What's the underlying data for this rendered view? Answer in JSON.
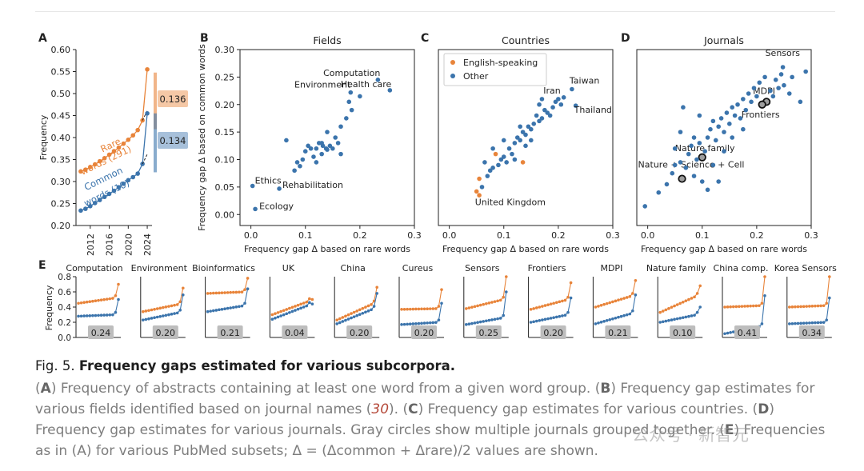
{
  "colors": {
    "rare": "#e8843a",
    "common": "#3b74ac",
    "label_box": "#bdbdbd"
  },
  "chart_data": [
    {
      "panel": "A",
      "type": "line",
      "title": "",
      "ylabel": "Frequency",
      "ylim": [
        0.2,
        0.6
      ],
      "yticks": [
        "0.20",
        "0.25",
        "0.30",
        "0.35",
        "0.40",
        "0.45",
        "0.50",
        "0.55",
        "0.60"
      ],
      "xticks": [
        "2012",
        "2016",
        "2020",
        "2024"
      ],
      "series": [
        {
          "name": "Rare words (291)",
          "label_lines": [
            "Rare",
            "words (291)"
          ],
          "x": [
            2010,
            2011,
            2012,
            2013,
            2014,
            2015,
            2016,
            2017,
            2018,
            2019,
            2020,
            2021,
            2022,
            2023,
            2024
          ],
          "values": [
            0.323,
            0.327,
            0.333,
            0.339,
            0.346,
            0.353,
            0.361,
            0.369,
            0.377,
            0.386,
            0.395,
            0.405,
            0.417,
            0.439,
            0.555
          ]
        },
        {
          "name": "Common words (10)",
          "label_lines": [
            "Common",
            "words (10)"
          ],
          "x": [
            2010,
            2011,
            2012,
            2013,
            2014,
            2015,
            2016,
            2017,
            2018,
            2019,
            2020,
            2021,
            2022,
            2023,
            2024
          ],
          "values": [
            0.234,
            0.238,
            0.244,
            0.251,
            0.258,
            0.265,
            0.272,
            0.279,
            0.287,
            0.295,
            0.303,
            0.31,
            0.318,
            0.34,
            0.455
          ]
        }
      ],
      "gap_labels": [
        "0.136",
        "0.134"
      ]
    },
    {
      "panel": "B",
      "type": "scatter",
      "title": "Fields",
      "xlabel": "Frequency gap Δ based on rare words",
      "ylabel": "Frequency gap Δ based on common words",
      "xlim": [
        -0.02,
        0.3
      ],
      "ylim": [
        -0.02,
        0.3
      ],
      "xticks": [
        "0.0",
        "0.1",
        "0.2",
        "0.3"
      ],
      "yticks": [
        "0.00",
        "0.05",
        "0.10",
        "0.15",
        "0.20",
        "0.25",
        "0.30"
      ],
      "points": [
        {
          "x": 0.003,
          "y": 0.052,
          "label": "Ethics"
        },
        {
          "x": 0.052,
          "y": 0.047,
          "label": "Rehabilitation"
        },
        {
          "x": 0.008,
          "y": 0.01,
          "label": "Ecology"
        },
        {
          "x": 0.183,
          "y": 0.222,
          "label": "Environment"
        },
        {
          "x": 0.233,
          "y": 0.245,
          "label": "Computation"
        },
        {
          "x": 0.255,
          "y": 0.226,
          "label": "Health care"
        },
        {
          "x": 0.08,
          "y": 0.08
        },
        {
          "x": 0.095,
          "y": 0.1
        },
        {
          "x": 0.1,
          "y": 0.115
        },
        {
          "x": 0.11,
          "y": 0.12
        },
        {
          "x": 0.115,
          "y": 0.105
        },
        {
          "x": 0.12,
          "y": 0.12
        },
        {
          "x": 0.125,
          "y": 0.13
        },
        {
          "x": 0.13,
          "y": 0.11
        },
        {
          "x": 0.132,
          "y": 0.125
        },
        {
          "x": 0.138,
          "y": 0.12
        },
        {
          "x": 0.14,
          "y": 0.118
        },
        {
          "x": 0.145,
          "y": 0.125
        },
        {
          "x": 0.15,
          "y": 0.12
        },
        {
          "x": 0.155,
          "y": 0.14
        },
        {
          "x": 0.16,
          "y": 0.13
        },
        {
          "x": 0.165,
          "y": 0.16
        },
        {
          "x": 0.175,
          "y": 0.175
        },
        {
          "x": 0.185,
          "y": 0.19
        },
        {
          "x": 0.2,
          "y": 0.215
        },
        {
          "x": 0.065,
          "y": 0.135
        },
        {
          "x": 0.09,
          "y": 0.088
        },
        {
          "x": 0.14,
          "y": 0.15
        },
        {
          "x": 0.12,
          "y": 0.095
        },
        {
          "x": 0.105,
          "y": 0.125
        },
        {
          "x": 0.18,
          "y": 0.205
        },
        {
          "x": 0.085,
          "y": 0.095
        },
        {
          "x": 0.165,
          "y": 0.11
        },
        {
          "x": 0.13,
          "y": 0.13
        }
      ]
    },
    {
      "panel": "C",
      "type": "scatter",
      "title": "Countries",
      "xlabel": "Frequency gap Δ based on rare words",
      "xlim": [
        -0.02,
        0.3
      ],
      "ylim": [
        -0.02,
        0.3
      ],
      "xticks": [
        "0.0",
        "0.1",
        "0.2",
        "0.3"
      ],
      "legend": [
        {
          "name": "English-speaking",
          "color": "#e8843a"
        },
        {
          "name": "Other",
          "color": "#3b74ac"
        }
      ],
      "points": [
        {
          "x": 0.05,
          "y": 0.042,
          "label": "United Kingdom",
          "group": "English-speaking"
        },
        {
          "x": 0.055,
          "y": 0.065,
          "group": "English-speaking"
        },
        {
          "x": 0.085,
          "y": 0.11,
          "group": "English-speaking"
        },
        {
          "x": 0.135,
          "y": 0.095,
          "group": "English-speaking"
        },
        {
          "x": 0.055,
          "y": 0.035,
          "group": "English-speaking"
        },
        {
          "x": 0.225,
          "y": 0.228,
          "label": "Taiwan",
          "group": "Other"
        },
        {
          "x": 0.21,
          "y": 0.213,
          "label": "Iran",
          "group": "Other"
        },
        {
          "x": 0.232,
          "y": 0.198,
          "label": "Thailand",
          "group": "Other"
        },
        {
          "x": 0.07,
          "y": 0.07
        },
        {
          "x": 0.075,
          "y": 0.08
        },
        {
          "x": 0.08,
          "y": 0.085
        },
        {
          "x": 0.09,
          "y": 0.09
        },
        {
          "x": 0.095,
          "y": 0.1
        },
        {
          "x": 0.1,
          "y": 0.105
        },
        {
          "x": 0.105,
          "y": 0.095
        },
        {
          "x": 0.11,
          "y": 0.12
        },
        {
          "x": 0.115,
          "y": 0.11
        },
        {
          "x": 0.12,
          "y": 0.13
        },
        {
          "x": 0.125,
          "y": 0.14
        },
        {
          "x": 0.13,
          "y": 0.135
        },
        {
          "x": 0.135,
          "y": 0.15
        },
        {
          "x": 0.14,
          "y": 0.145
        },
        {
          "x": 0.145,
          "y": 0.16
        },
        {
          "x": 0.15,
          "y": 0.155
        },
        {
          "x": 0.155,
          "y": 0.165
        },
        {
          "x": 0.16,
          "y": 0.18
        },
        {
          "x": 0.165,
          "y": 0.17
        },
        {
          "x": 0.17,
          "y": 0.175
        },
        {
          "x": 0.175,
          "y": 0.19
        },
        {
          "x": 0.18,
          "y": 0.185
        },
        {
          "x": 0.185,
          "y": 0.18
        },
        {
          "x": 0.19,
          "y": 0.195
        },
        {
          "x": 0.195,
          "y": 0.205
        },
        {
          "x": 0.2,
          "y": 0.21
        },
        {
          "x": 0.205,
          "y": 0.2
        },
        {
          "x": 0.13,
          "y": 0.16
        },
        {
          "x": 0.14,
          "y": 0.125
        },
        {
          "x": 0.15,
          "y": 0.135
        },
        {
          "x": 0.165,
          "y": 0.2
        },
        {
          "x": 0.08,
          "y": 0.12
        },
        {
          "x": 0.12,
          "y": 0.1
        },
        {
          "x": 0.1,
          "y": 0.135
        },
        {
          "x": 0.065,
          "y": 0.095
        },
        {
          "x": 0.06,
          "y": 0.05
        },
        {
          "x": 0.17,
          "y": 0.21
        }
      ]
    },
    {
      "panel": "D",
      "type": "scatter",
      "title": "Journals",
      "xlabel": "Frequency gap Δ based on rare words",
      "xlim": [
        -0.02,
        0.3
      ],
      "ylim": [
        -0.02,
        0.3
      ],
      "xticks": [
        "0.0",
        "0.1",
        "0.2",
        "0.3"
      ],
      "points": [
        {
          "x": 0.248,
          "y": 0.268,
          "label": "Sensors"
        },
        {
          "x": 0.218,
          "y": 0.205,
          "label": "MDPI",
          "grouped": true
        },
        {
          "x": 0.21,
          "y": 0.2,
          "label": "Frontiers",
          "grouped": true
        },
        {
          "x": 0.1,
          "y": 0.104,
          "label": "Nature family",
          "grouped": true
        },
        {
          "x": 0.063,
          "y": 0.065,
          "label": "Nature + Science + Cell",
          "grouped": true
        },
        {
          "x": -0.005,
          "y": 0.015
        },
        {
          "x": 0.02,
          "y": 0.04
        },
        {
          "x": 0.035,
          "y": 0.055
        },
        {
          "x": 0.045,
          "y": 0.075
        },
        {
          "x": 0.05,
          "y": 0.09
        },
        {
          "x": 0.06,
          "y": 0.095
        },
        {
          "x": 0.07,
          "y": 0.085
        },
        {
          "x": 0.075,
          "y": 0.11
        },
        {
          "x": 0.08,
          "y": 0.125
        },
        {
          "x": 0.085,
          "y": 0.14
        },
        {
          "x": 0.09,
          "y": 0.1
        },
        {
          "x": 0.095,
          "y": 0.13
        },
        {
          "x": 0.105,
          "y": 0.115
        },
        {
          "x": 0.11,
          "y": 0.14
        },
        {
          "x": 0.115,
          "y": 0.155
        },
        {
          "x": 0.12,
          "y": 0.17
        },
        {
          "x": 0.125,
          "y": 0.135
        },
        {
          "x": 0.13,
          "y": 0.16
        },
        {
          "x": 0.135,
          "y": 0.175
        },
        {
          "x": 0.14,
          "y": 0.15
        },
        {
          "x": 0.145,
          "y": 0.185
        },
        {
          "x": 0.15,
          "y": 0.165
        },
        {
          "x": 0.155,
          "y": 0.195
        },
        {
          "x": 0.16,
          "y": 0.18
        },
        {
          "x": 0.165,
          "y": 0.2
        },
        {
          "x": 0.17,
          "y": 0.175
        },
        {
          "x": 0.175,
          "y": 0.21
        },
        {
          "x": 0.18,
          "y": 0.19
        },
        {
          "x": 0.185,
          "y": 0.22
        },
        {
          "x": 0.19,
          "y": 0.205
        },
        {
          "x": 0.195,
          "y": 0.23
        },
        {
          "x": 0.2,
          "y": 0.215
        },
        {
          "x": 0.205,
          "y": 0.24
        },
        {
          "x": 0.225,
          "y": 0.225
        },
        {
          "x": 0.23,
          "y": 0.215
        },
        {
          "x": 0.235,
          "y": 0.245
        },
        {
          "x": 0.24,
          "y": 0.23
        },
        {
          "x": 0.245,
          "y": 0.255
        },
        {
          "x": 0.25,
          "y": 0.235
        },
        {
          "x": 0.26,
          "y": 0.22
        },
        {
          "x": 0.29,
          "y": 0.26
        },
        {
          "x": 0.28,
          "y": 0.205
        },
        {
          "x": 0.265,
          "y": 0.25
        },
        {
          "x": 0.05,
          "y": 0.12
        },
        {
          "x": 0.06,
          "y": 0.15
        },
        {
          "x": 0.085,
          "y": 0.07
        },
        {
          "x": 0.11,
          "y": 0.045
        },
        {
          "x": 0.12,
          "y": 0.09
        },
        {
          "x": 0.13,
          "y": 0.06
        },
        {
          "x": 0.14,
          "y": 0.115
        },
        {
          "x": 0.095,
          "y": 0.18
        },
        {
          "x": 0.065,
          "y": 0.195
        },
        {
          "x": 0.215,
          "y": 0.25
        },
        {
          "x": 0.155,
          "y": 0.14
        },
        {
          "x": 0.175,
          "y": 0.155
        },
        {
          "x": 0.1,
          "y": 0.06
        }
      ]
    },
    {
      "panel": "E",
      "type": "line",
      "ylabel": "Frequency",
      "ylim": [
        0,
        0.8
      ],
      "yticks": [
        "0.0",
        "0.2",
        "0.4",
        "0.6",
        "0.8"
      ],
      "subplots": [
        {
          "title": "Computation",
          "delta": "0.24",
          "rare_start": 0.45,
          "rare_end": 0.52,
          "rare_peak": 0.7,
          "common_start": 0.28,
          "common_end": 0.3,
          "common_peak": 0.5
        },
        {
          "title": "Environment",
          "delta": "0.20",
          "rare_start": 0.34,
          "rare_end": 0.44,
          "rare_peak": 0.65,
          "common_start": 0.23,
          "common_end": 0.33,
          "common_peak": 0.56
        },
        {
          "title": "Bioinformatics",
          "delta": "0.21",
          "rare_start": 0.58,
          "rare_end": 0.6,
          "rare_peak": 0.78,
          "common_start": 0.34,
          "common_end": 0.42,
          "common_peak": 0.64
        },
        {
          "title": "UK",
          "delta": "0.04",
          "rare_start": 0.3,
          "rare_end": 0.48,
          "rare_peak": 0.5,
          "common_start": 0.24,
          "common_end": 0.43,
          "common_peak": 0.44
        },
        {
          "title": "China",
          "delta": "0.20",
          "rare_start": 0.23,
          "rare_end": 0.45,
          "rare_peak": 0.66,
          "common_start": 0.18,
          "common_end": 0.38,
          "common_peak": 0.58
        },
        {
          "title": "Cureus",
          "delta": "0.20",
          "rare_start": 0.37,
          "rare_end": 0.38,
          "rare_peak": 0.63,
          "common_start": 0.17,
          "common_end": 0.2,
          "common_peak": 0.45
        },
        {
          "title": "Sensors",
          "delta": "0.25",
          "rare_start": 0.38,
          "rare_end": 0.5,
          "rare_peak": 0.8,
          "common_start": 0.17,
          "common_end": 0.26,
          "common_peak": 0.6
        },
        {
          "title": "Frontiers",
          "delta": "0.20",
          "rare_start": 0.37,
          "rare_end": 0.5,
          "rare_peak": 0.72,
          "common_start": 0.2,
          "common_end": 0.3,
          "common_peak": 0.52
        },
        {
          "title": "MDPI",
          "delta": "0.21",
          "rare_start": 0.4,
          "rare_end": 0.55,
          "rare_peak": 0.75,
          "common_start": 0.18,
          "common_end": 0.32,
          "common_peak": 0.56
        },
        {
          "title": "Nature family",
          "delta": "0.10",
          "rare_start": 0.33,
          "rare_end": 0.55,
          "rare_peak": 0.68,
          "common_start": 0.2,
          "common_end": 0.3,
          "common_peak": 0.4
        },
        {
          "title": "China comp.",
          "delta": "0.41",
          "rare_start": 0.4,
          "rare_end": 0.42,
          "rare_peak": 0.8,
          "common_start": 0.05,
          "common_end": 0.15,
          "common_peak": 0.55
        },
        {
          "title": "Korea Sensors",
          "delta": "0.34",
          "rare_start": 0.4,
          "rare_end": 0.42,
          "rare_peak": 0.8,
          "common_start": 0.18,
          "common_end": 0.2,
          "common_peak": 0.52
        }
      ]
    }
  ],
  "caption": {
    "fig_label": "Fig. 5.",
    "fig_title": "Frequency gaps estimated for various subcorpora.",
    "a_label": "A",
    "a_text": "Frequency of abstracts containing at least one word from a given word group.",
    "b_label": "B",
    "b_text": "Frequency gap estimates for various fields identified based on journal names (",
    "ref": "30",
    "b_close": ").",
    "c_label": "C",
    "c_text": "Frequency gap estimates for various countries.",
    "d_label": "D",
    "d_text": "Frequency gap estimates for various journals. Gray circles show multiple journals grouped together.",
    "e_label": "E",
    "e_text": "Frequencies as in (A) for various PubMed subsets; Δ = (Δcommon + Δrare)/2 values are shown."
  },
  "watermark": "公众号 · 新智元"
}
